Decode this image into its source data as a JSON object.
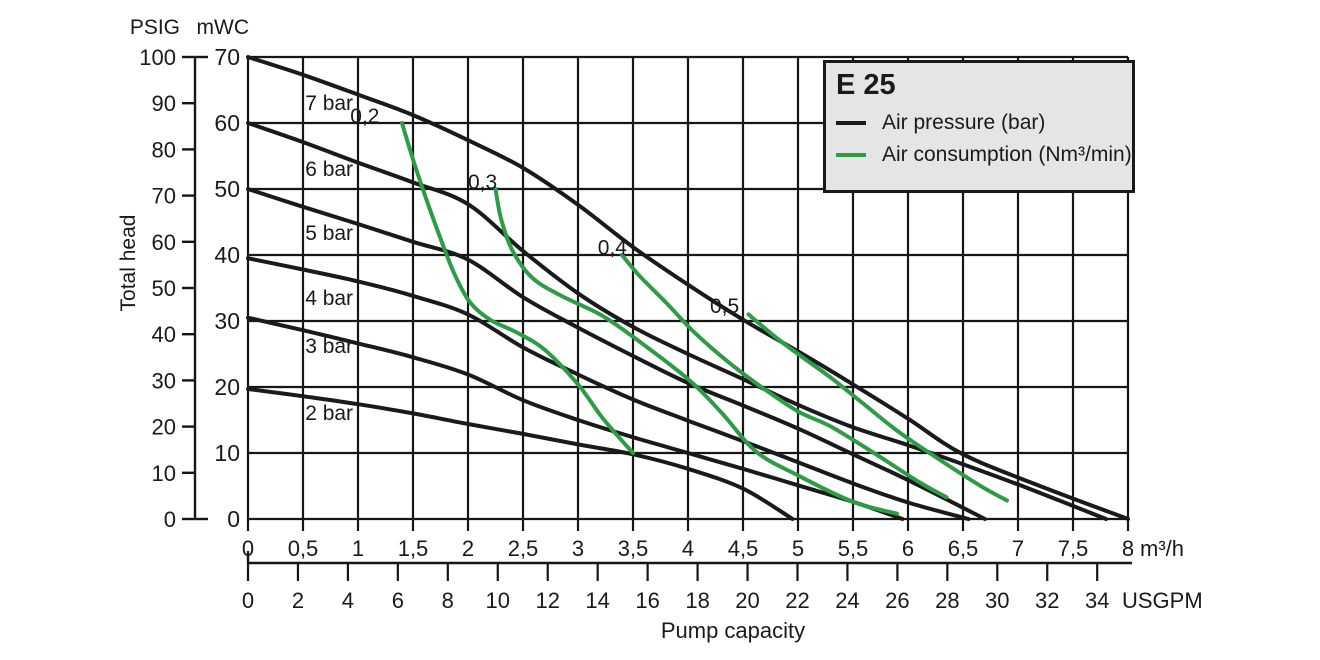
{
  "chart_data": {
    "type": "line",
    "title": "E 25",
    "x_axis": {
      "label": "Pump capacity",
      "primary": {
        "unit": "m³/h",
        "range": [
          0,
          8
        ],
        "tick_values": [
          0,
          0.5,
          1,
          1.5,
          2,
          2.5,
          3,
          3.5,
          4,
          4.5,
          5,
          5.5,
          6,
          6.5,
          7,
          7.5,
          8
        ],
        "tick_labels": [
          "0",
          "0,5",
          "1",
          "1,5",
          "2",
          "2,5",
          "3",
          "3,5",
          "4",
          "4,5",
          "5",
          "5,5",
          "6",
          "6,5",
          "7",
          "7,5",
          "8"
        ]
      },
      "secondary": {
        "unit": "USGPM",
        "range": [
          0,
          34
        ],
        "tick_values": [
          0,
          2,
          4,
          6,
          8,
          10,
          12,
          14,
          16,
          18,
          20,
          22,
          24,
          26,
          28,
          30,
          32,
          34
        ],
        "max_flow_equivalent_m3h": 7.72
      }
    },
    "y_axis": {
      "label": "Total head",
      "primary": {
        "unit": "mWC",
        "range": [
          0,
          70
        ],
        "tick_values": [
          70,
          60,
          50,
          40,
          30,
          20,
          10,
          0
        ]
      },
      "secondary": {
        "unit": "PSIG",
        "range": [
          0,
          100
        ],
        "tick_values": [
          100,
          90,
          80,
          70,
          60,
          50,
          40,
          30,
          20,
          10,
          0
        ]
      }
    },
    "legend": {
      "title": "E 25",
      "items": [
        {
          "name": "air-pressure",
          "label": "Air pressure (bar)",
          "color": "#1a1a1a"
        },
        {
          "name": "air-consumption",
          "label": "Air consumption (Nm³/min)",
          "color": "#2e9b45"
        }
      ]
    },
    "grid": {
      "x_step_m3h": 0.5,
      "y_step_mwc": 10
    },
    "series": {
      "air_pressure_bar": [
        {
          "label": "7 bar",
          "value": 7,
          "label_pos": [
            0.52,
            63.2
          ],
          "points": [
            [
              0,
              70
            ],
            [
              0.5,
              67.3
            ],
            [
              1,
              64.3
            ],
            [
              1.5,
              61.2
            ],
            [
              2,
              57.4
            ],
            [
              2.5,
              53.2
            ],
            [
              3,
              47.6
            ],
            [
              3.5,
              41.2
            ],
            [
              4,
              35.5
            ],
            [
              4.5,
              30.2
            ],
            [
              5,
              25.4
            ],
            [
              5.5,
              20.4
            ],
            [
              6,
              15.2
            ],
            [
              6.5,
              9.8
            ],
            [
              7.2,
              5
            ],
            [
              8,
              0
            ]
          ]
        },
        {
          "label": "6 bar",
          "value": 6,
          "label_pos": [
            0.52,
            53.2
          ],
          "points": [
            [
              0,
              60
            ],
            [
              0.5,
              57.1
            ],
            [
              1,
              54
            ],
            [
              1.5,
              51
            ],
            [
              2,
              47.7
            ],
            [
              2.5,
              40.6
            ],
            [
              3,
              34.2
            ],
            [
              3.5,
              29.1
            ],
            [
              4,
              25
            ],
            [
              4.5,
              21.2
            ],
            [
              5,
              17.3
            ],
            [
              5.5,
              13.9
            ],
            [
              6,
              11.2
            ],
            [
              6.5,
              8.3
            ],
            [
              7.1,
              4.6
            ],
            [
              7.8,
              0
            ]
          ]
        },
        {
          "label": "5 bar",
          "value": 5,
          "label_pos": [
            0.52,
            43.5
          ],
          "points": [
            [
              0,
              50
            ],
            [
              0.5,
              47.3
            ],
            [
              1,
              44.7
            ],
            [
              1.5,
              42
            ],
            [
              2,
              39.3
            ],
            [
              2.5,
              33.6
            ],
            [
              3,
              29
            ],
            [
              3.5,
              24.7
            ],
            [
              4,
              20.6
            ],
            [
              4.5,
              17.2
            ],
            [
              5,
              13.7
            ],
            [
              5.5,
              9.8
            ],
            [
              6,
              5.9
            ],
            [
              6.7,
              0
            ]
          ]
        },
        {
          "label": "4 bar",
          "value": 4,
          "label_pos": [
            0.52,
            33.6
          ],
          "points": [
            [
              0,
              39.5
            ],
            [
              0.5,
              37.8
            ],
            [
              1,
              36
            ],
            [
              1.5,
              33.8
            ],
            [
              2,
              31
            ],
            [
              2.5,
              26
            ],
            [
              3,
              21.9
            ],
            [
              3.5,
              18.1
            ],
            [
              4,
              14.9
            ],
            [
              4.5,
              11.8
            ],
            [
              5,
              8.6
            ],
            [
              5.5,
              5.4
            ],
            [
              6,
              2.5
            ],
            [
              6.55,
              0
            ]
          ]
        },
        {
          "label": "3 bar",
          "value": 3,
          "label_pos": [
            0.52,
            26.4
          ],
          "points": [
            [
              0,
              30.5
            ],
            [
              0.5,
              28.6
            ],
            [
              1,
              26.6
            ],
            [
              1.5,
              24.5
            ],
            [
              2,
              21.9
            ],
            [
              2.5,
              18
            ],
            [
              3,
              15
            ],
            [
              3.5,
              12.4
            ],
            [
              4,
              10
            ],
            [
              4.5,
              7.6
            ],
            [
              5,
              5.1
            ],
            [
              5.5,
              2.6
            ],
            [
              5.95,
              0
            ]
          ]
        },
        {
          "label": "2 bar",
          "value": 2,
          "label_pos": [
            0.52,
            16.2
          ],
          "points": [
            [
              0,
              19.7
            ],
            [
              0.5,
              18.6
            ],
            [
              1,
              17.4
            ],
            [
              1.5,
              16
            ],
            [
              2,
              14.4
            ],
            [
              2.5,
              12.9
            ],
            [
              3,
              11.3
            ],
            [
              3.5,
              9.8
            ],
            [
              4,
              7.6
            ],
            [
              4.5,
              4.6
            ],
            [
              4.95,
              0
            ]
          ]
        }
      ],
      "air_consumption_nm3min": [
        {
          "label": "0,2",
          "value": 0.2,
          "label_pos": [
            0.93,
            61.2
          ],
          "points": [
            [
              1.4,
              60
            ],
            [
              1.5,
              54.5
            ],
            [
              1.62,
              48.5
            ],
            [
              1.75,
              42.5
            ],
            [
              1.88,
              37
            ],
            [
              2.02,
              32.8
            ],
            [
              2.2,
              30.2
            ],
            [
              2.45,
              28.2
            ],
            [
              2.7,
              25.6
            ],
            [
              3,
              20.4
            ],
            [
              3.2,
              15.8
            ],
            [
              3.35,
              12.8
            ],
            [
              3.5,
              10
            ]
          ]
        },
        {
          "label": "0,3",
          "value": 0.3,
          "label_pos": [
            2.0,
            51.2
          ],
          "points": [
            [
              2.25,
              50
            ],
            [
              2.3,
              45.5
            ],
            [
              2.4,
              40.8
            ],
            [
              2.58,
              36.6
            ],
            [
              2.85,
              33.8
            ],
            [
              3.2,
              31
            ],
            [
              3.5,
              27.6
            ],
            [
              4,
              21.2
            ],
            [
              4.3,
              16.2
            ],
            [
              4.62,
              10.2
            ],
            [
              5,
              6.6
            ],
            [
              5.5,
              2.6
            ],
            [
              5.9,
              0.8
            ]
          ]
        },
        {
          "label": "0,4",
          "value": 0.4,
          "label_pos": [
            3.18,
            41.3
          ],
          "points": [
            [
              3.4,
              40
            ],
            [
              3.55,
              37
            ],
            [
              3.8,
              32.8
            ],
            [
              4.05,
              28.4
            ],
            [
              4.35,
              24
            ],
            [
              4.65,
              20.2
            ],
            [
              5,
              16.3
            ],
            [
              5.3,
              14
            ],
            [
              5.7,
              9.9
            ],
            [
              6.1,
              5.6
            ],
            [
              6.35,
              3.3
            ]
          ]
        },
        {
          "label": "0,5",
          "value": 0.5,
          "label_pos": [
            4.2,
            32.4
          ],
          "points": [
            [
              4.55,
              31
            ],
            [
              4.8,
              27.5
            ],
            [
              5.05,
              24.4
            ],
            [
              5.3,
              21.4
            ],
            [
              5.6,
              17.4
            ],
            [
              5.9,
              13.4
            ],
            [
              6.25,
              9.4
            ],
            [
              6.65,
              5.1
            ],
            [
              6.9,
              2.8
            ]
          ]
        }
      ]
    },
    "colors": {
      "curve_black": "#1a1a1a",
      "curve_green": "#2e9b45",
      "grid": "#161616",
      "legend_bg": "#e5e5e5",
      "background": "#ffffff"
    }
  }
}
